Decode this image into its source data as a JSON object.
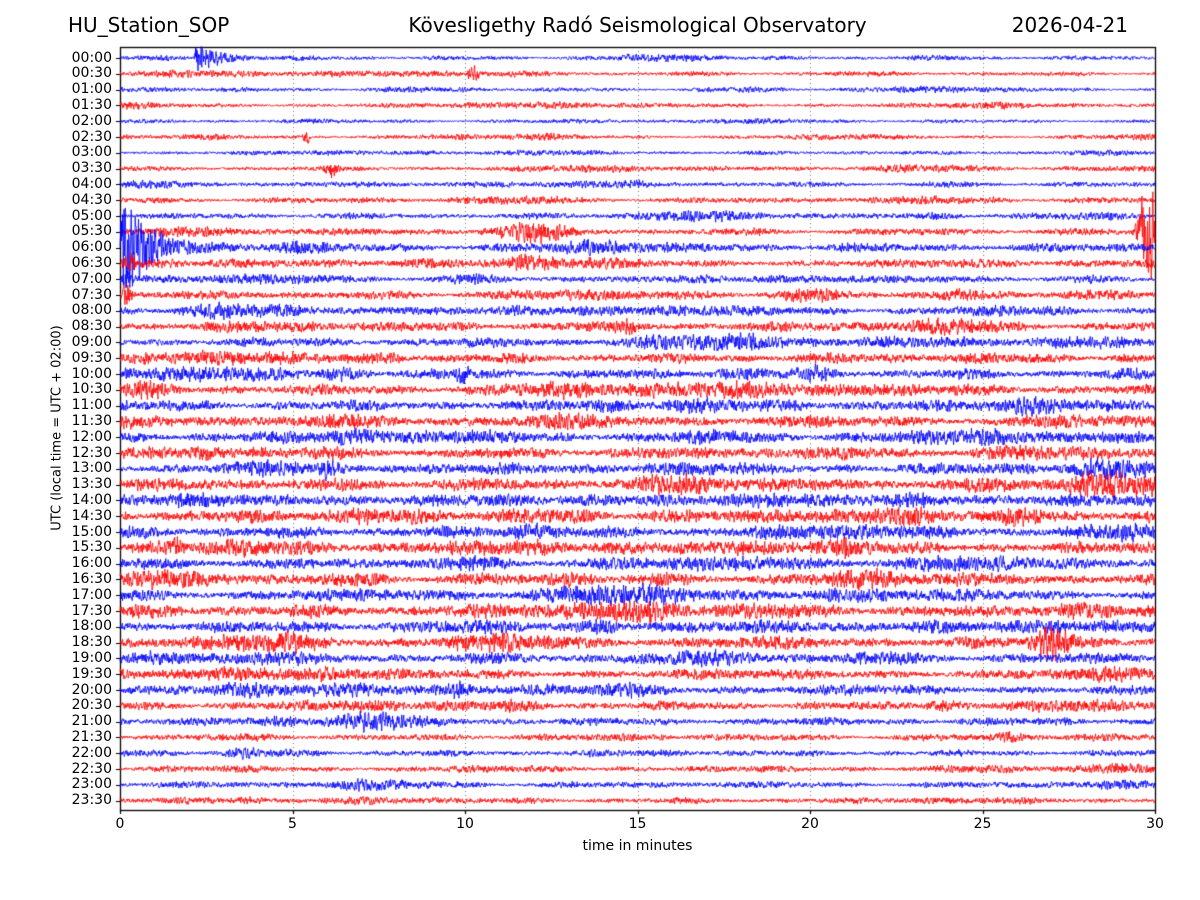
{
  "header": {
    "station": "HU_Station_SOP",
    "observatory": "Kövesligethy Radó Seismological Observatory",
    "date": "2026-04-21"
  },
  "chart_data": {
    "type": "line",
    "subtype": "helicorder-daily-seismogram",
    "xlabel": "time in minutes",
    "ylabel": "UTC (local time = UTC + 02:00)",
    "xlim": [
      0,
      30
    ],
    "x_ticks": [
      0,
      5,
      10,
      15,
      20,
      25,
      30
    ],
    "minutes_per_row": 30,
    "grid": "dotted vertical lines at 5-minute intervals",
    "legend": "none",
    "colors": {
      "blue": "#0000ff",
      "red": "#ff0000",
      "grid": "#777777",
      "frame": "#000000",
      "background": "#ffffff"
    },
    "rows": [
      {
        "label": "00:00",
        "color": "blue",
        "amp": 2.0
      },
      {
        "label": "00:30",
        "color": "red",
        "amp": 2.0
      },
      {
        "label": "01:00",
        "color": "blue",
        "amp": 1.8
      },
      {
        "label": "01:30",
        "color": "red",
        "amp": 2.0
      },
      {
        "label": "02:00",
        "color": "blue",
        "amp": 1.7
      },
      {
        "label": "02:30",
        "color": "red",
        "amp": 2.0
      },
      {
        "label": "03:00",
        "color": "blue",
        "amp": 1.8
      },
      {
        "label": "03:30",
        "color": "red",
        "amp": 2.2
      },
      {
        "label": "04:00",
        "color": "blue",
        "amp": 2.4
      },
      {
        "label": "04:30",
        "color": "red",
        "amp": 2.6
      },
      {
        "label": "05:00",
        "color": "blue",
        "amp": 2.6
      },
      {
        "label": "05:30",
        "color": "red",
        "amp": 3.2
      },
      {
        "label": "06:00",
        "color": "blue",
        "amp": 3.8
      },
      {
        "label": "06:30",
        "color": "red",
        "amp": 3.8
      },
      {
        "label": "07:00",
        "color": "blue",
        "amp": 3.2
      },
      {
        "label": "07:30",
        "color": "red",
        "amp": 3.8
      },
      {
        "label": "08:00",
        "color": "blue",
        "amp": 4.0
      },
      {
        "label": "08:30",
        "color": "red",
        "amp": 4.2
      },
      {
        "label": "09:00",
        "color": "blue",
        "amp": 4.2
      },
      {
        "label": "09:30",
        "color": "red",
        "amp": 4.5
      },
      {
        "label": "10:00",
        "color": "blue",
        "amp": 4.5
      },
      {
        "label": "10:30",
        "color": "red",
        "amp": 4.8
      },
      {
        "label": "11:00",
        "color": "blue",
        "amp": 4.8
      },
      {
        "label": "11:30",
        "color": "red",
        "amp": 5.2
      },
      {
        "label": "12:00",
        "color": "blue",
        "amp": 5.0
      },
      {
        "label": "12:30",
        "color": "red",
        "amp": 5.2
      },
      {
        "label": "13:00",
        "color": "blue",
        "amp": 5.0
      },
      {
        "label": "13:30",
        "color": "red",
        "amp": 5.8
      },
      {
        "label": "14:00",
        "color": "blue",
        "amp": 5.2
      },
      {
        "label": "14:30",
        "color": "red",
        "amp": 5.8
      },
      {
        "label": "15:00",
        "color": "blue",
        "amp": 5.2
      },
      {
        "label": "15:30",
        "color": "red",
        "amp": 5.2
      },
      {
        "label": "16:00",
        "color": "blue",
        "amp": 5.0
      },
      {
        "label": "16:30",
        "color": "red",
        "amp": 5.2
      },
      {
        "label": "17:00",
        "color": "blue",
        "amp": 5.2
      },
      {
        "label": "17:30",
        "color": "red",
        "amp": 5.5
      },
      {
        "label": "18:00",
        "color": "blue",
        "amp": 5.2
      },
      {
        "label": "18:30",
        "color": "red",
        "amp": 5.5
      },
      {
        "label": "19:00",
        "color": "blue",
        "amp": 4.8
      },
      {
        "label": "19:30",
        "color": "red",
        "amp": 4.6
      },
      {
        "label": "20:00",
        "color": "blue",
        "amp": 4.4
      },
      {
        "label": "20:30",
        "color": "red",
        "amp": 4.0
      },
      {
        "label": "21:00",
        "color": "blue",
        "amp": 3.6
      },
      {
        "label": "21:30",
        "color": "red",
        "amp": 3.0
      },
      {
        "label": "22:00",
        "color": "blue",
        "amp": 2.8
      },
      {
        "label": "22:30",
        "color": "red",
        "amp": 3.0
      },
      {
        "label": "23:00",
        "color": "blue",
        "amp": 2.8
      },
      {
        "label": "23:30",
        "color": "red",
        "amp": 2.6
      }
    ],
    "events": [
      {
        "row": "00:00",
        "type": "eq",
        "start_min": 2.15,
        "end_min": 5.2,
        "peak": 20
      },
      {
        "row": "00:30",
        "type": "burst",
        "start_min": 10.0,
        "end_min": 10.5,
        "peak": 8
      },
      {
        "row": "02:30",
        "type": "spike",
        "start_min": 5.25,
        "end_min": 5.55,
        "peak": 9
      },
      {
        "row": "03:30",
        "type": "burst",
        "start_min": 5.8,
        "end_min": 6.5,
        "peak": 7
      },
      {
        "row": "05:30",
        "type": "burst",
        "start_min": 11.2,
        "end_min": 13.6,
        "peak": 6
      },
      {
        "row": "05:30",
        "type": "burst",
        "start_min": 29.3,
        "end_min": 30.3,
        "peak": 52
      },
      {
        "row": "06:00",
        "type": "eq",
        "start_min": 0.0,
        "end_min": 3.8,
        "peak": 60
      },
      {
        "row": "06:00",
        "type": "burst",
        "start_min": 3.5,
        "end_min": 6.5,
        "peak": 5
      },
      {
        "row": "06:30",
        "type": "spike",
        "start_min": 0.0,
        "end_min": 0.5,
        "peak": 12
      },
      {
        "row": "07:00",
        "type": "spike",
        "start_min": 0.0,
        "end_min": 0.35,
        "peak": 10
      },
      {
        "row": "07:30",
        "type": "spike",
        "start_min": 0.0,
        "end_min": 0.4,
        "peak": 13
      },
      {
        "row": "08:30",
        "type": "burst",
        "start_min": 14.3,
        "end_min": 15.2,
        "peak": 6
      },
      {
        "row": "10:00",
        "type": "burst",
        "start_min": 9.6,
        "end_min": 10.25,
        "peak": 8
      },
      {
        "row": "13:00",
        "type": "burst",
        "start_min": 5.7,
        "end_min": 6.45,
        "peak": 9
      },
      {
        "row": "15:30",
        "type": "burst",
        "start_min": 1.3,
        "end_min": 1.95,
        "peak": 9
      },
      {
        "row": "18:30",
        "type": "burst",
        "start_min": 26.1,
        "end_min": 27.9,
        "peak": 14
      },
      {
        "row": "20:00",
        "type": "burst",
        "start_min": 9.3,
        "end_min": 10.3,
        "peak": 7
      }
    ]
  }
}
